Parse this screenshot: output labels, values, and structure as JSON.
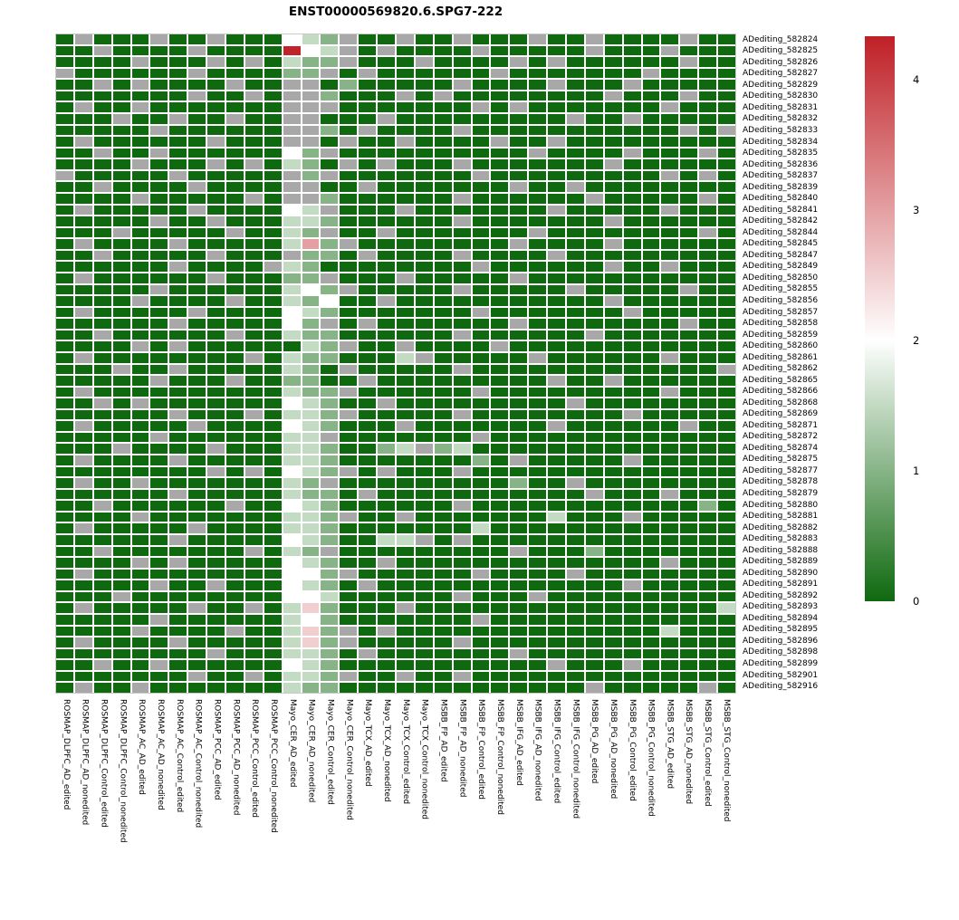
{
  "title": "ENST00000569820.6.SPG7-222",
  "chart_data": {
    "type": "heatmap",
    "title": "ENST00000569820.6.SPG7-222",
    "rows": [
      "ADediting_582824",
      "ADediting_582825",
      "ADediting_582826",
      "ADediting_582827",
      "ADediting_582829",
      "ADediting_582830",
      "ADediting_582831",
      "ADediting_582832",
      "ADediting_582833",
      "ADediting_582834",
      "ADediting_582835",
      "ADediting_582836",
      "ADediting_582837",
      "ADediting_582839",
      "ADediting_582840",
      "ADediting_582841",
      "ADediting_582842",
      "ADediting_582844",
      "ADediting_582845",
      "ADediting_582847",
      "ADediting_582849",
      "ADediting_582850",
      "ADediting_582855",
      "ADediting_582856",
      "ADediting_582857",
      "ADediting_582858",
      "ADediting_582859",
      "ADediting_582860",
      "ADediting_582861",
      "ADediting_582862",
      "ADediting_582865",
      "ADediting_582866",
      "ADediting_582868",
      "ADediting_582869",
      "ADediting_582871",
      "ADediting_582872",
      "ADediting_582874",
      "ADediting_582875",
      "ADediting_582877",
      "ADediting_582878",
      "ADediting_582879",
      "ADediting_582880",
      "ADediting_582881",
      "ADediting_582882",
      "ADediting_582883",
      "ADediting_582888",
      "ADediting_582889",
      "ADediting_582890",
      "ADediting_582891",
      "ADediting_582892",
      "ADediting_582893",
      "ADediting_582894",
      "ADediting_582895",
      "ADediting_582896",
      "ADediting_582898",
      "ADediting_582899",
      "ADediting_582901",
      "ADediting_582916"
    ],
    "columns": [
      "ROSMAP_DLPFC_AD_edited",
      "ROSMAP_DLPFC_AD_nonedited",
      "ROSMAP_DLPFC_Control_edited",
      "ROSMAP_DLPFC_Control_nonedited",
      "ROSMAP_AC_AD_edited",
      "ROSMAP_AC_AD_nonedited",
      "ROSMAP_AC_Control_edited",
      "ROSMAP_AC_Control_nonedited",
      "ROSMAP_PCC_AD_edited",
      "ROSMAP_PCC_AD_nonedited",
      "ROSMAP_PCC_Control_edited",
      "ROSMAP_PCC_Control_nonedited",
      "Mayo_CER_AD_edited",
      "Mayo_CER_AD_nonedited",
      "Mayo_CER_Control_edited",
      "Mayo_CER_Control_nonedited",
      "Mayo_TCX_AD_edited",
      "Mayo_TCX_AD_nonedited",
      "Mayo_TCX_Control_edited",
      "Mayo_TCX_Control_nonedited",
      "MSBB_FP_AD_edited",
      "MSBB_FP_AD_nonedited",
      "MSBB_FP_Control_edited",
      "MSBB_FP_Control_nonedited",
      "MSBB_IFG_AD_edited",
      "MSBB_IFG_AD_nonedited",
      "MSBB_IFG_Control_edited",
      "MSBB_IFG_Control_nonedited",
      "MSBB_PG_AD_edited",
      "MSBB_PG_AD_nonedited",
      "MSBB_PG_Control_edited",
      "MSBB_PG_Control_nonedited",
      "MSBB_STG_AD_edited",
      "MSBB_STG_AD_nonedited",
      "MSBB_STG_Control_edited",
      "MSBB_STG_Control_nonedited"
    ],
    "value_key": {
      "N": null,
      "0": 0,
      "a": 0.5,
      "b": 1,
      "c": 1.5,
      "d": 2,
      "e": 2.5,
      "f": 3,
      "g": 4.3
    },
    "matrix": [
      "0N000N00N000dcbN00N00N000N00N0000N00",
      "00N0000N0000gdcN0N0000N00000N000N000",
      "0000N000N0N0cbbN000N0000N0N000000N00",
      "N000000N0000bbN0N000000N0000000N0000",
      "00N0N0000N00NN0b00000N0000N000N00000",
      "0000000N00N0NNb000N0N00000000N000N00",
      "0N00N0000000NNN0000000N0N0000000N000",
      "000N00N00N00NN000N000000000N00N00000",
      "00000N000000NNb0N0000N00000000000N0N",
      "0N000000N000NN0N00N0000N00N000000000",
      "00N00N000000dbN0000000000N0000N000N0",
      "0000N000N0N0cb0N0N000N0000000N000000",
      "N00000N00000NbN0000000N000000000N0N0",
      "00N0000N0000NN00N0000000N00N00000000",
      "0000N00000N0NNb000000N000000N00000N0",
      "0N00000N0000dcN000N0000000N00000N000",
      "00000N00N000ccb000000N0000000N000000",
      "000N00000N00cbN00N0000000N00000000N0",
      "0N0000N00000cfbN00000000N0000N000000",
      "00N00000N000Nbb0N0000N0000N000000000",
      "000000N0000Ncb00000000N000000N00N000",
      "0N000000N000bbN000N00000N00000000000",
      "00000N000000cdbN00000N00000N00000N00",
      "0000N0000N00cbd00N00000000000N000000",
      "0N00000N0000dcb0000000N0000000N00000",
      "000000N00000dbN0N0000000N00000000N00",
      "00N000000N00cbb000000N000000N0000000",
      "0000N0N000000cbN00N0000N000000000000",
      "0N00000000N0cbb000cN00000N000000N000",
      "000N00N00000cb0N00000N0000000000000N",
      "00000N000N00bb00N000000000N00N000000",
      "0N0000000000cbbN000000N000000000N000",
      "00N0N0000000dcb00N000000000N00000000",
      "000000N000N0ccbN00000N00000000N00000",
      "0N00000N0000dcb000N0000000N000000N00",
      "00000N000000ccN0000000N0000000000000",
      "000N0000N000ccb00bcNbc00000000000000",
      "0N0000N00000ccb0000000b0N00000N00000",
      "00000000N0N0dcbN0N000N00000000000000",
      "0N00N0000000cbN000000000b00N00000000",
      "000000N00000cbb0N00000000000N000N000",
      "00N000000N00dcb000000N000000000000b0",
      "0000N0000000ccbN00N0000000c000N00000",
      "0N00000N0000ccb0000000c0000000000000",
      "000000N00000dcb00ccN0N00000000000000",
      "00N0000000N0cbN000000000N000b0000000",
      "0000N0N00000dcb00N00000000000000N000",
      "0N0000000000ddbN000000N0000N00000000",
      "00000N00N000dcb0N0000000000000N00000",
      "000N00000000ddc000000N000N0000000000",
      "0N00000N00N0ceb000N0000000000000000c",
      "00000N000000cdb0000000N0000000000000",
      "0000N0000N00cebN0N00000000000000c000",
      "0N0000N00000cebN00000N00000000000000",
      "00000000N000ccb0N0000000N00000000000",
      "00N00N000000dcb00000000000N000N00000",
      "0000000N00N0ccbN00N00N00000000000000",
      "0N00N0000000cbb0000000000000N00000N0"
    ],
    "colors": {
      "low": "#0f690f",
      "mid": "#ffffff",
      "high": "#bf2026",
      "na": "#a8a8a8",
      "gap": "#ffffff"
    },
    "scale": {
      "min": 0,
      "mid": 2,
      "max": 4.33
    },
    "legend_ticks": [
      4,
      3,
      2,
      1,
      0
    ],
    "legend_position": "right",
    "grid": "white gaps between cells"
  }
}
